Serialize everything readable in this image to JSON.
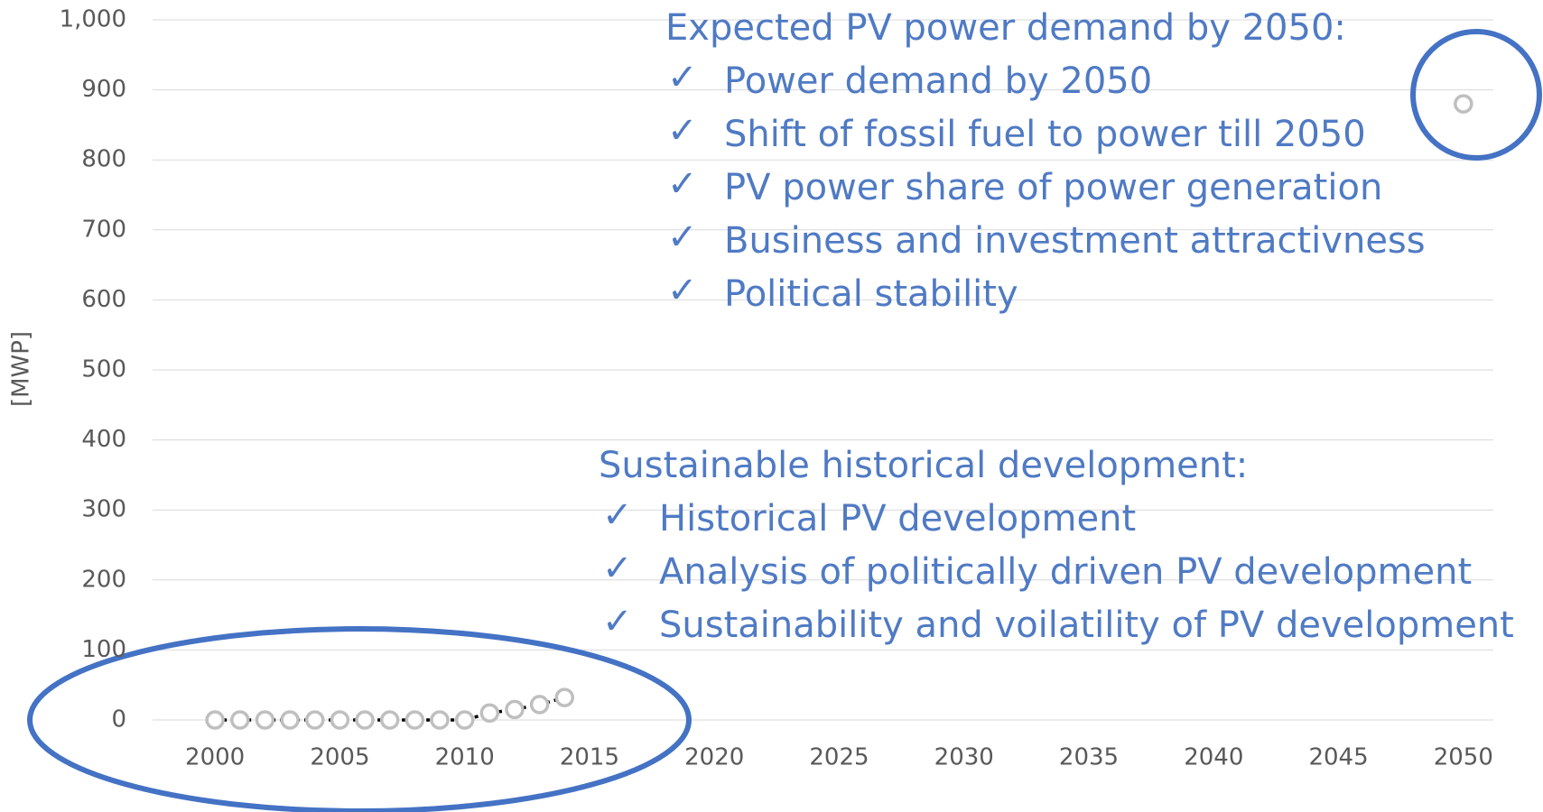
{
  "chart_data": {
    "type": "scatter",
    "ylabel": "[MWP]",
    "xlim": [
      1997.5,
      2051.2
    ],
    "xticks": [
      2000,
      2005,
      2010,
      2015,
      2020,
      2025,
      2030,
      2035,
      2040,
      2045,
      2050
    ],
    "ylim": [
      0,
      1000
    ],
    "yticks": [
      0,
      100,
      200,
      300,
      400,
      500,
      600,
      700,
      800,
      900,
      {
        "value": 1000,
        "label": "1,000"
      }
    ],
    "grid": true,
    "series": [
      {
        "color": "#bfbfbf",
        "line": true,
        "line_color": "#000000",
        "x": [
          2000,
          2001,
          2002,
          2003,
          2004,
          2005,
          2006,
          2007,
          2008,
          2009,
          2010,
          2011,
          2012,
          2013,
          2014
        ],
        "values": [
          0,
          0,
          0,
          0,
          0,
          0,
          0,
          0,
          0,
          0,
          0,
          10,
          15,
          22,
          32
        ]
      },
      {
        "color": "#bfbfbf",
        "line": false,
        "x": [
          2050
        ],
        "values": [
          880
        ]
      }
    ],
    "annotations": [
      {
        "title": "Expected PV power demand by 2050:",
        "bullet": "✓",
        "items": [
          "Power demand by 2050",
          "Shift of fossil fuel to power till 2050",
          "PV power share of power generation",
          "Business and investment attractivness",
          "Political stability"
        ]
      },
      {
        "title": "Sustainable historical development:",
        "bullet": "✓",
        "items": [
          "Historical PV development",
          "Analysis of politically driven PV development",
          "Sustainability and voilatility of PV development"
        ]
      }
    ]
  }
}
